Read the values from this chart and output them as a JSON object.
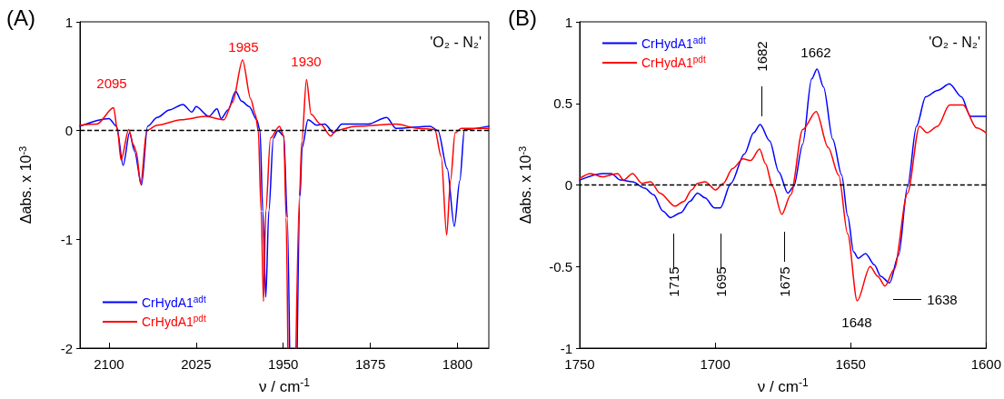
{
  "chart_data": [
    {
      "type": "line",
      "title": "(A)",
      "xlabel": "ν / cm$^{-1}$",
      "ylabel": "Δabs. x 10$^{-3}$",
      "xlim": [
        2125,
        1773
      ],
      "xticks": [
        2100,
        2025,
        1950,
        1875,
        1800
      ],
      "ylim": [
        -2,
        1
      ],
      "yticks": [
        -2,
        -1,
        0,
        1
      ],
      "legend": "bottom left",
      "ref_lines": [
        {
          "axis": "y",
          "value": 0,
          "color": "#000000",
          "line_style": "dashed"
        }
      ],
      "annotations": [
        "'O₂ - N₂'",
        "2095",
        "1985",
        "1930"
      ],
      "series": [
        {
          "name": "CrHydA1$^{adt}$",
          "color": "#0000ff",
          "x": [
            2125,
            2100,
            2093.5,
            2087.8,
            2082.3,
            2078,
            2072,
            2066.8,
            2058.5,
            2048,
            2036.4,
            2028.6,
            2025,
            2014,
            2007,
            2003.4,
            1997.5,
            1991,
            1985.8,
            1979.3,
            1972.8,
            1970,
            1967.6,
            1965,
            1962.4,
            1958.5,
            1954.6,
            1949.5,
            1946.5,
            1944.5,
            1942,
            1938,
            1935.5,
            1933.8,
            1928.7,
            1921,
            1914.4,
            1906.6,
            1899.5,
            1876.9,
            1861,
            1852.8,
            1823.5,
            1816.8,
            1808.8,
            1802.7,
            1798,
            1794,
            1773
          ],
          "values": [
            0.04,
            0.11,
            0.04,
            -0.32,
            -0.02,
            -0.19,
            -0.5,
            0.04,
            0.12,
            0.19,
            0.24,
            0.17,
            0.22,
            0.13,
            0.2,
            0.11,
            0.19,
            0.36,
            0.27,
            0.22,
            0.1,
            0,
            -0.74,
            -1.53,
            -0.74,
            -0.07,
            0,
            -0.05,
            -0.8,
            -2,
            null,
            -2,
            -0.6,
            -0.16,
            0.1,
            0.05,
            0.06,
            -0.02,
            0.06,
            0.06,
            0.12,
            0.02,
            0.04,
            0,
            -0.35,
            -0.88,
            -0.46,
            0.01,
            0.04
          ]
        },
        {
          "name": "CrHydA1$^{pdt}$",
          "color": "#ff0000",
          "x": [
            2125,
            2110.4,
            2096,
            2092.7,
            2089.6,
            2083,
            2079,
            2076.6,
            2072.7,
            2067.5,
            2058.5,
            2037.7,
            2017,
            2001,
            1993.6,
            1985,
            1978,
            1974,
            1971.5,
            1969,
            1967,
            1965,
            1961,
            1953.3,
            1949.5,
            1947.5,
            1946,
            1945,
            1939,
            1936,
            1934,
            1930,
            1926,
            1918,
            1909,
            1905,
            1887.5,
            1852.8,
            1834,
            1819.5,
            1814,
            1809.3,
            1806,
            1802,
            1796.8,
            1773
          ],
          "values": [
            0.05,
            0.06,
            0.21,
            0,
            -0.27,
            0.01,
            -0.13,
            -0.19,
            -0.49,
            0,
            0.05,
            0.1,
            0.13,
            0.1,
            0.26,
            0.65,
            0.29,
            0.15,
            0,
            -0.74,
            -1.57,
            -0.74,
            -0.07,
            0.04,
            -0.05,
            -0.8,
            -2,
            null,
            -2,
            -0.6,
            -0.1,
            0.47,
            0.15,
            0.06,
            -0.05,
            0,
            0.04,
            0.06,
            0.02,
            0.01,
            -0.24,
            -0.96,
            -0.46,
            -0.02,
            0.02,
            0.02
          ]
        }
      ]
    },
    {
      "type": "line",
      "title": "(B)",
      "xlabel": "ν / cm$^{-1}$",
      "ylabel": "Δabs. x 10$^{-3}$",
      "xlim": [
        1750,
        1600
      ],
      "xticks": [
        1750,
        1700,
        1650,
        1600
      ],
      "ylim": [
        -1,
        1
      ],
      "yticks": [
        -1,
        -0.5,
        0,
        0.5,
        1
      ],
      "legend": "top left",
      "ref_lines": [
        {
          "axis": "y",
          "value": 0,
          "color": "#000000",
          "line_style": "dashed"
        }
      ],
      "annotations": [
        "'O₂ - N₂'",
        "1682",
        "1662",
        "1715",
        "1695",
        "1675",
        "1648",
        "1638"
      ],
      "series": [
        {
          "name": "CrHydA1$^{adt}$",
          "color": "#0000ff",
          "x": [
            1750,
            1741.6,
            1738.3,
            1735,
            1730.5,
            1726,
            1722.7,
            1719.3,
            1716.5,
            1712.6,
            1709.3,
            1706.5,
            1703.7,
            1700.3,
            1698.1,
            1694.2,
            1689.2,
            1685.8,
            1683.4,
            1679.9,
            1676.5,
            1673.2,
            1671,
            1667.7,
            1664.4,
            1662.4,
            1660,
            1656.6,
            1653.3,
            1651.1,
            1648.9,
            1647.2,
            1644.5,
            1641.2,
            1638.9,
            1635.6,
            1632.3,
            1629,
            1625.7,
            1622.3,
            1617.9,
            1613.5,
            1609.1,
            1605.8,
            1600
          ],
          "values": [
            0.03,
            0.07,
            0.07,
            0.03,
            0.02,
            -0.02,
            -0.06,
            -0.16,
            -0.2,
            -0.17,
            -0.1,
            -0.05,
            -0.08,
            -0.14,
            -0.14,
            0.01,
            0.19,
            0.32,
            0.37,
            0.27,
            0.08,
            -0.05,
            -0.01,
            0.25,
            0.65,
            0.71,
            0.6,
            0.28,
            0.06,
            -0.19,
            -0.41,
            -0.45,
            -0.42,
            -0.49,
            -0.56,
            -0.6,
            -0.43,
            -0.01,
            0.36,
            0.54,
            0.58,
            0.62,
            0.54,
            0.42,
            0.42
          ]
        },
        {
          "name": "CrHydA1$^{pdt}$",
          "color": "#ff0000",
          "x": [
            1750,
            1746,
            1741.6,
            1736,
            1733.8,
            1730.5,
            1727,
            1723.8,
            1720.4,
            1714.8,
            1711.5,
            1708.7,
            1706.5,
            1703.7,
            1699.8,
            1697,
            1693.6,
            1689.7,
            1686.9,
            1683.6,
            1681.4,
            1678.8,
            1675.4,
            1672.1,
            1667.7,
            1662.7,
            1658.3,
            1654.4,
            1651.1,
            1647.6,
            1642.8,
            1640,
            1637.3,
            1634,
            1629,
            1624.6,
            1621.8,
            1617.9,
            1613.5,
            1608.5,
            1603.5,
            1600
          ],
          "values": [
            0.04,
            0.07,
            0.05,
            0.07,
            0.03,
            0.07,
            0.01,
            0.02,
            -0.05,
            -0.13,
            -0.1,
            -0.03,
            0.01,
            0.02,
            -0.03,
            0.01,
            0.1,
            0.16,
            0.15,
            0.22,
            0.13,
            -0.01,
            -0.18,
            -0.06,
            0.34,
            0.45,
            0.23,
            0.06,
            -0.3,
            -0.71,
            -0.5,
            -0.56,
            -0.62,
            -0.52,
            -0.05,
            0.36,
            0.32,
            0.36,
            0.49,
            0.49,
            0.35,
            0.32
          ]
        }
      ]
    }
  ]
}
